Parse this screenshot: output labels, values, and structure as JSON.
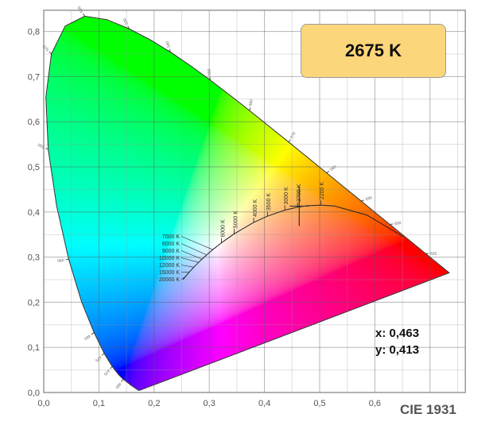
{
  "chart_data": {
    "type": "scatter",
    "title": "CIE 1931",
    "xlim": [
      0,
      0.764
    ],
    "ylim": [
      0,
      0.847
    ],
    "grid": true,
    "x_ticks": [
      "0,0",
      "0,1",
      "0,2",
      "0,3",
      "0,4",
      "0,5",
      "0,6"
    ],
    "y_ticks": [
      "0,0",
      "0,1",
      "0,2",
      "0,3",
      "0,4",
      "0,5",
      "0,6",
      "0,7",
      "0,8"
    ],
    "spectral_locus": [
      {
        "nm": 380,
        "x": 0.1741,
        "y": 0.005
      },
      {
        "nm": 400,
        "x": 0.1733,
        "y": 0.0048
      },
      {
        "nm": 420,
        "x": 0.1714,
        "y": 0.0051
      },
      {
        "nm": 440,
        "x": 0.1644,
        "y": 0.0109
      },
      {
        "nm": 450,
        "x": 0.1566,
        "y": 0.0177
      },
      {
        "nm": 460,
        "x": 0.144,
        "y": 0.0297
      },
      {
        "nm": 465,
        "x": 0.1355,
        "y": 0.0399
      },
      {
        "nm": 470,
        "x": 0.1241,
        "y": 0.0578
      },
      {
        "nm": 475,
        "x": 0.1096,
        "y": 0.0868
      },
      {
        "nm": 480,
        "x": 0.0913,
        "y": 0.1327
      },
      {
        "nm": 485,
        "x": 0.0687,
        "y": 0.2007
      },
      {
        "nm": 490,
        "x": 0.0454,
        "y": 0.295
      },
      {
        "nm": 495,
        "x": 0.0235,
        "y": 0.4127
      },
      {
        "nm": 500,
        "x": 0.0082,
        "y": 0.5384
      },
      {
        "nm": 505,
        "x": 0.0039,
        "y": 0.6548
      },
      {
        "nm": 510,
        "x": 0.0139,
        "y": 0.7502
      },
      {
        "nm": 515,
        "x": 0.0389,
        "y": 0.812
      },
      {
        "nm": 520,
        "x": 0.0743,
        "y": 0.8338
      },
      {
        "nm": 525,
        "x": 0.1142,
        "y": 0.8262
      },
      {
        "nm": 530,
        "x": 0.1547,
        "y": 0.8059
      },
      {
        "nm": 535,
        "x": 0.1929,
        "y": 0.7816
      },
      {
        "nm": 540,
        "x": 0.2296,
        "y": 0.7543
      },
      {
        "nm": 545,
        "x": 0.2658,
        "y": 0.7243
      },
      {
        "nm": 550,
        "x": 0.3016,
        "y": 0.6923
      },
      {
        "nm": 555,
        "x": 0.3373,
        "y": 0.6589
      },
      {
        "nm": 560,
        "x": 0.3731,
        "y": 0.6245
      },
      {
        "nm": 565,
        "x": 0.4087,
        "y": 0.5896
      },
      {
        "nm": 570,
        "x": 0.4441,
        "y": 0.5547
      },
      {
        "nm": 575,
        "x": 0.4788,
        "y": 0.5202
      },
      {
        "nm": 580,
        "x": 0.5125,
        "y": 0.4866
      },
      {
        "nm": 585,
        "x": 0.5448,
        "y": 0.4544
      },
      {
        "nm": 590,
        "x": 0.5752,
        "y": 0.4242
      },
      {
        "nm": 595,
        "x": 0.6029,
        "y": 0.3965
      },
      {
        "nm": 600,
        "x": 0.627,
        "y": 0.3725
      },
      {
        "nm": 610,
        "x": 0.6658,
        "y": 0.334
      },
      {
        "nm": 620,
        "x": 0.6915,
        "y": 0.3083
      },
      {
        "nm": 630,
        "x": 0.7079,
        "y": 0.292
      },
      {
        "nm": 640,
        "x": 0.719,
        "y": 0.2809
      },
      {
        "nm": 660,
        "x": 0.73,
        "y": 0.27
      },
      {
        "nm": 700,
        "x": 0.7347,
        "y": 0.2653
      }
    ],
    "wavelength_labels": [
      460,
      470,
      475,
      480,
      490,
      500,
      510,
      520,
      530,
      540,
      550,
      560,
      570,
      580,
      590,
      600,
      620
    ],
    "planckian_locus": [
      {
        "K": 1000,
        "x": 0.6528,
        "y": 0.3444
      },
      {
        "K": 1500,
        "x": 0.5857,
        "y": 0.3931
      },
      {
        "K": 2000,
        "x": 0.5267,
        "y": 0.4133
      },
      {
        "K": 2200,
        "x": 0.5019,
        "y": 0.4152
      },
      {
        "K": 2500,
        "x": 0.477,
        "y": 0.4137
      },
      {
        "K": 2700,
        "x": 0.4599,
        "y": 0.4106
      },
      {
        "K": 3000,
        "x": 0.4369,
        "y": 0.4041
      },
      {
        "K": 3500,
        "x": 0.4053,
        "y": 0.3907
      },
      {
        "K": 4000,
        "x": 0.3805,
        "y": 0.3768
      },
      {
        "K": 5000,
        "x": 0.3451,
        "y": 0.3516
      },
      {
        "K": 6000,
        "x": 0.3221,
        "y": 0.3318
      },
      {
        "K": 7000,
        "x": 0.3064,
        "y": 0.3166
      },
      {
        "K": 8000,
        "x": 0.2952,
        "y": 0.3048
      },
      {
        "K": 9000,
        "x": 0.2869,
        "y": 0.2956
      },
      {
        "K": 10000,
        "x": 0.2807,
        "y": 0.2884
      },
      {
        "K": 12000,
        "x": 0.2719,
        "y": 0.2776
      },
      {
        "K": 15000,
        "x": 0.2637,
        "y": 0.2668
      },
      {
        "K": 20000,
        "x": 0.2565,
        "y": 0.2564
      },
      {
        "K": 25000,
        "x": 0.2525,
        "y": 0.2503
      }
    ],
    "cct_labels": [
      {
        "K": 2200,
        "text": "2200 K"
      },
      {
        "K": 2700,
        "text": "2700 K"
      },
      {
        "K": 3000,
        "text": "3000 K"
      },
      {
        "K": 3500,
        "text": "3500 K"
      },
      {
        "K": 4000,
        "text": "4000 K"
      },
      {
        "K": 5000,
        "text": "5000 K"
      },
      {
        "K": 6000,
        "text": "6000 K"
      },
      {
        "K": 7000,
        "text": "7000 K"
      },
      {
        "K": 8000,
        "text": "8000 K"
      },
      {
        "K": 9000,
        "text": "9000 K"
      },
      {
        "K": 10000,
        "text": "10000 K"
      },
      {
        "K": 12000,
        "text": "12000 K"
      },
      {
        "K": 15000,
        "text": "15000 K"
      },
      {
        "K": 20000,
        "text": "20000 K"
      }
    ],
    "measured_point": {
      "x": 0.463,
      "y": 0.413
    }
  },
  "badge": {
    "cct": "2675 K",
    "color": "#fcd67a"
  },
  "readout": {
    "x": "x: 0,463",
    "y": "y: 0,413"
  },
  "title": "CIE 1931"
}
